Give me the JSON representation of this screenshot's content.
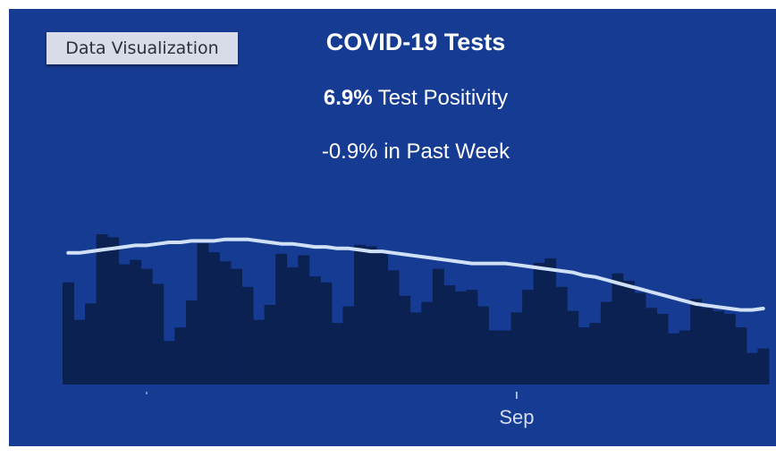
{
  "button": {
    "label": "Data Visualization"
  },
  "header": {
    "title": "COVID-19 Tests",
    "positivity_value": "6.9%",
    "positivity_label": " Test Positivity",
    "week_change": "-0.9% in Past Week"
  },
  "colors": {
    "background": "#163b93",
    "bars": "#0b2152",
    "trend_line": "#cfe0f7",
    "text": "#ffffff"
  },
  "chart_data": {
    "type": "bar",
    "title": "COVID-19 Tests",
    "xlabel": "",
    "ylabel": "",
    "x_ticks": [
      {
        "label": "",
        "index": 7
      },
      {
        "label": "Sep",
        "index": 40
      }
    ],
    "ylim": [
      0,
      100
    ],
    "grid": false,
    "series": [
      {
        "kind": "bar",
        "values": [
          68,
          43,
          54,
          100,
          98,
          80,
          83,
          77,
          67,
          29,
          38,
          56,
          94,
          88,
          82,
          77,
          65,
          43,
          53,
          87,
          78,
          86,
          72,
          68,
          41,
          52,
          93,
          92,
          88,
          76,
          59,
          48,
          55,
          77,
          66,
          62,
          63,
          52,
          36,
          36,
          48,
          63,
          81,
          84,
          65,
          49,
          38,
          41,
          55,
          74,
          69,
          61,
          51,
          47,
          34,
          36,
          57,
          51,
          49,
          47,
          38,
          21,
          24
        ]
      },
      {
        "kind": "line",
        "values": [
          90,
          90,
          91,
          92,
          93,
          94,
          95,
          95,
          96,
          97,
          97,
          98,
          98,
          98,
          99,
          99,
          99,
          98,
          97,
          96,
          96,
          95,
          94,
          94,
          93,
          93,
          92,
          91,
          91,
          90,
          89,
          88,
          87,
          86,
          85,
          84,
          83,
          83,
          83,
          83,
          82,
          81,
          80,
          79,
          78,
          77,
          75,
          74,
          72,
          70,
          68,
          66,
          64,
          62,
          60,
          58,
          56,
          55,
          54,
          53,
          52,
          52,
          53
        ]
      }
    ]
  }
}
